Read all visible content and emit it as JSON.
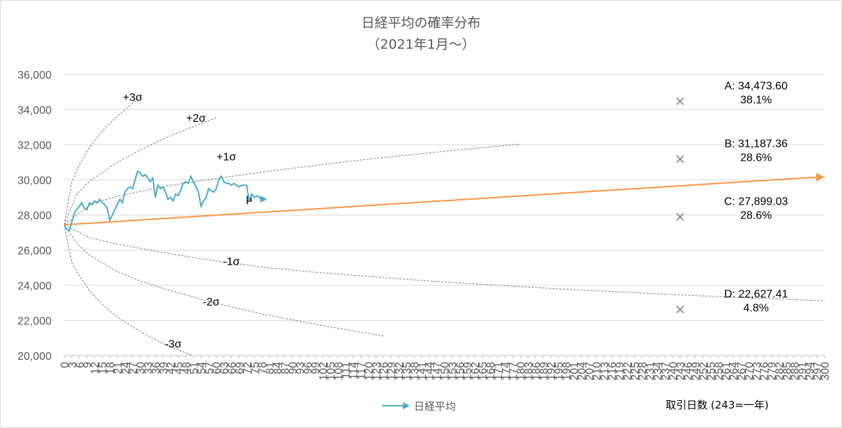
{
  "chart_data": {
    "type": "line",
    "title": "日経平均の確率分布",
    "subtitle": "（2021年1月～）",
    "xlabel": "取引日数 (243=一年)",
    "ylabel": "",
    "xlim": [
      0,
      300
    ],
    "ylim": [
      20000,
      36000
    ],
    "y_ticks": [
      "20,000",
      "22,000",
      "24,000",
      "26,000",
      "28,000",
      "30,000",
      "32,000",
      "34,000",
      "36,000"
    ],
    "x_tick_step": 3,
    "grid": "horizontal",
    "series": [
      {
        "name": "日経平均",
        "color": "#4bacc6",
        "x": [
          0,
          1,
          2,
          3,
          4,
          5,
          6,
          7,
          8,
          9,
          10,
          11,
          12,
          13,
          14,
          15,
          16,
          17,
          18,
          19,
          20,
          21,
          22,
          23,
          24,
          25,
          26,
          27,
          28,
          29,
          30,
          31,
          32,
          33,
          34,
          35,
          36,
          37,
          38,
          39,
          40,
          41,
          42,
          43,
          44,
          45,
          46,
          47,
          48,
          49,
          50,
          51,
          52,
          53,
          54,
          55,
          56,
          57,
          58,
          59,
          60,
          61,
          62,
          63,
          64,
          65,
          66,
          67,
          68,
          69,
          70,
          71,
          72,
          73,
          74,
          75,
          76,
          77,
          78,
          79
        ],
        "values": [
          27400,
          27200,
          27100,
          27600,
          28100,
          28300,
          28500,
          28700,
          28400,
          28300,
          28700,
          28600,
          28800,
          28700,
          28900,
          28700,
          28600,
          28400,
          27700,
          28000,
          28300,
          28600,
          28900,
          28700,
          29300,
          29500,
          29600,
          29500,
          30000,
          30500,
          30400,
          30200,
          30300,
          30100,
          29900,
          30100,
          29000,
          29700,
          29500,
          29600,
          29300,
          28900,
          29000,
          28800,
          29200,
          29100,
          29400,
          29800,
          29900,
          29800,
          30200,
          29900,
          29600,
          29300,
          28500,
          28800,
          29000,
          29500,
          29400,
          29300,
          29500,
          30000,
          30200,
          29900,
          29800,
          29800,
          29700,
          29800,
          29700,
          29600,
          29700,
          29700,
          29700,
          28800,
          29200,
          29000,
          29100,
          29000,
          28900,
          28900
        ]
      },
      {
        "name": "μ",
        "color": "#f79646",
        "x": [
          0,
          300
        ],
        "values": [
          27444,
          30160
        ]
      }
    ],
    "sigma_curves": [
      {
        "label": "+3σ",
        "x": [
          0,
          3,
          6,
          10,
          15,
          20,
          25,
          30
        ],
        "values": [
          27444,
          29860,
          30866,
          31863,
          32771,
          33488,
          34119,
          34712
        ]
      },
      {
        "label": "+2σ",
        "x": [
          0,
          5,
          10,
          20,
          30,
          40,
          50,
          60
        ],
        "values": [
          27444,
          29200,
          29915,
          30912,
          31700,
          32390,
          32988,
          33530
        ]
      },
      {
        "label": "+1σ",
        "x": [
          0,
          10,
          20,
          40,
          60,
          80,
          100,
          120,
          150,
          180
        ],
        "values": [
          27444,
          28560,
          29040,
          29640,
          30080,
          30480,
          30840,
          31180,
          31630,
          32040
        ]
      },
      {
        "label": "-1σ",
        "x": [
          0,
          10,
          20,
          40,
          60,
          80,
          100,
          150,
          200,
          250,
          300
        ],
        "values": [
          27444,
          26710,
          26380,
          25840,
          25380,
          25010,
          24730,
          24180,
          23760,
          23410,
          23120
        ]
      },
      {
        "label": "-2σ",
        "x": [
          0,
          5,
          10,
          20,
          30,
          40,
          60,
          80,
          100,
          120,
          126
        ],
        "values": [
          27444,
          26400,
          25720,
          24850,
          24250,
          23780,
          22970,
          22310,
          21760,
          21270,
          21120
        ]
      },
      {
        "label": "-3σ",
        "x": [
          0,
          3,
          6,
          10,
          15,
          20,
          30,
          40,
          50,
          55
        ],
        "values": [
          27444,
          25300,
          24530,
          23700,
          22930,
          22300,
          21360,
          20620,
          20040,
          19760
        ]
      }
    ],
    "points": [
      {
        "label": "A: 34,473.60",
        "prob": "38.1%",
        "x": 243,
        "y": 34473.6
      },
      {
        "label": "B: 31,187.36",
        "prob": "28.6%",
        "x": 243,
        "y": 31187.36
      },
      {
        "label": "C: 27,899.03",
        "prob": "28.6%",
        "x": 243,
        "y": 27899.03
      },
      {
        "label": "D: 22,627.41",
        "prob": "4.8%",
        "x": 243,
        "y": 22627.41
      }
    ],
    "legend": [
      {
        "name": "日経平均",
        "color": "#4bacc6"
      }
    ],
    "legend_position": "bottom"
  },
  "colors": {
    "grid": "#d9d9d9",
    "axis": "#bfbfbf",
    "sigma": "#7f7f7f",
    "marker": "#7f7f7f"
  }
}
